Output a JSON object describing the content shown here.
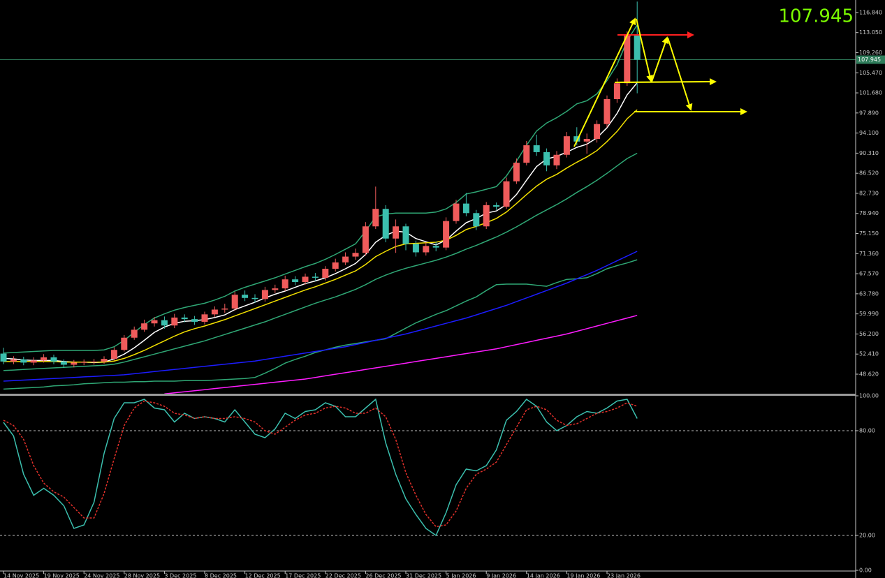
{
  "chart_data": [
    {
      "type": "candlestick",
      "current_price": 107.945,
      "up_color": "#ef5b5b",
      "down_color": "#3bbfae",
      "price_line_color": "#2f7d5b",
      "price_text_color": "#7cfc00",
      "categories": [
        "14 Nov 2025",
        null,
        null,
        null,
        "19 Nov 2025",
        null,
        null,
        null,
        "24 Nov 2025",
        null,
        null,
        null,
        "28 Nov 2025",
        null,
        null,
        null,
        "3 Dec 2025",
        null,
        null,
        null,
        "8 Dec 2025",
        null,
        null,
        null,
        "12 Dec 2025",
        null,
        null,
        null,
        "17 Dec 2025",
        null,
        null,
        null,
        "22 Dec 2025",
        null,
        null,
        null,
        "26 Dec 2025",
        null,
        null,
        null,
        "31 Dec 2025",
        null,
        null,
        null,
        "5 Jan 2026",
        null,
        null,
        null,
        "9 Jan 2026",
        null,
        null,
        null,
        "14 Jan 2026",
        null,
        null,
        null,
        "19 Jan 2026",
        null,
        null,
        null,
        "23 Jan 2026",
        null,
        null,
        null
      ],
      "open": [
        52.5,
        51.0,
        51.4,
        50.8,
        51.2,
        51.8,
        51.0,
        50.4,
        50.8,
        50.9,
        51.0,
        51.5,
        53.2,
        55.5,
        57.0,
        58.2,
        58.8,
        57.8,
        59.3,
        59.0,
        58.5,
        59.9,
        60.8,
        61.0,
        63.6,
        63.0,
        62.8,
        64.5,
        64.8,
        66.5,
        66.0,
        67.0,
        66.8,
        68.5,
        69.7,
        70.8,
        71.5,
        76.5,
        79.8,
        74.2,
        76.5,
        73.2,
        71.6,
        72.8,
        72.5,
        77.5,
        80.8,
        79.0,
        76.5,
        80.5,
        80.2,
        85.0,
        88.5,
        91.8,
        90.5,
        88.0,
        90.0,
        93.5,
        92.5,
        93.0,
        95.8,
        100.5,
        103.5,
        112.5
      ],
      "high": [
        53.6,
        52.0,
        51.9,
        51.8,
        52.4,
        52.3,
        51.4,
        51.3,
        51.4,
        51.5,
        52.0,
        53.7,
        56.0,
        57.6,
        58.9,
        59.4,
        59.5,
        60.0,
        59.9,
        59.6,
        60.4,
        61.4,
        61.9,
        64.2,
        64.4,
        63.7,
        65.1,
        65.5,
        67.2,
        67.1,
        67.6,
        67.7,
        69.0,
        70.4,
        71.6,
        72.3,
        77.3,
        84.0,
        80.5,
        77.8,
        77.0,
        73.8,
        73.5,
        73.6,
        78.2,
        81.5,
        82.8,
        79.6,
        81.1,
        81.0,
        85.7,
        89.3,
        92.6,
        93.8,
        91.2,
        90.7,
        94.3,
        95.2,
        94.0,
        96.5,
        101.2,
        104.4,
        113.3,
        118.9
      ],
      "low": [
        50.5,
        50.5,
        50.3,
        50.3,
        50.8,
        50.5,
        49.8,
        49.9,
        50.3,
        50.4,
        50.6,
        51.2,
        52.9,
        55.1,
        56.6,
        57.6,
        57.2,
        57.3,
        58.4,
        57.9,
        58.0,
        59.4,
        60.2,
        60.6,
        62.4,
        62.1,
        62.3,
        63.9,
        64.3,
        65.4,
        65.5,
        66.2,
        66.3,
        68.0,
        69.2,
        70.2,
        71.0,
        76.0,
        73.5,
        71.5,
        72.0,
        70.8,
        71.0,
        71.8,
        72.0,
        77.0,
        78.4,
        75.8,
        76.0,
        79.6,
        79.8,
        84.5,
        88.0,
        89.8,
        86.9,
        87.3,
        89.5,
        91.8,
        90.2,
        92.3,
        95.2,
        99.8,
        103.0,
        101.6
      ],
      "close": [
        51.0,
        51.4,
        50.8,
        51.2,
        51.8,
        51.0,
        50.4,
        50.8,
        50.9,
        51.0,
        51.5,
        53.2,
        55.5,
        57.0,
        58.2,
        58.8,
        57.8,
        59.3,
        59.0,
        58.5,
        59.9,
        60.8,
        61.0,
        63.6,
        63.0,
        62.8,
        64.5,
        64.8,
        66.5,
        66.0,
        67.0,
        66.8,
        68.5,
        69.7,
        70.8,
        71.5,
        76.5,
        79.8,
        74.2,
        76.5,
        73.2,
        71.6,
        72.8,
        72.5,
        77.5,
        80.8,
        79.0,
        76.5,
        80.5,
        80.2,
        85.0,
        88.5,
        91.8,
        90.5,
        88.0,
        90.0,
        93.5,
        92.5,
        93.0,
        95.8,
        100.5,
        103.5,
        112.5,
        107.945
      ],
      "series": [
        {
          "color": "#ffffff",
          "values": [
            51.6,
            51.5,
            51.3,
            51.2,
            51.2,
            51.2,
            51.0,
            50.9,
            50.9,
            50.8,
            50.9,
            51.5,
            52.4,
            53.6,
            55.0,
            56.5,
            57.5,
            58.2,
            58.6,
            58.7,
            58.9,
            59.3,
            59.8,
            60.8,
            61.5,
            62.2,
            63.0,
            63.7,
            64.3,
            65.0,
            65.7,
            66.2,
            66.8,
            67.6,
            68.5,
            69.5,
            71.2,
            73.5,
            74.8,
            75.6,
            75.4,
            74.2,
            73.6,
            73.0,
            73.9,
            75.6,
            77.2,
            78.0,
            79.0,
            79.4,
            80.6,
            82.5,
            85.2,
            87.8,
            89.2,
            89.7,
            90.5,
            91.4,
            92.0,
            93.2,
            95.1,
            97.8,
            101.3,
            103.6
          ]
        },
        {
          "color": "#f2e000",
          "values": [
            51.0,
            51.0,
            51.0,
            51.0,
            51.0,
            51.0,
            50.9,
            50.9,
            50.9,
            50.9,
            50.9,
            51.1,
            51.6,
            52.3,
            53.1,
            54.0,
            54.9,
            55.8,
            56.6,
            57.2,
            57.7,
            58.3,
            58.9,
            59.6,
            60.3,
            61.0,
            61.7,
            62.4,
            63.1,
            63.8,
            64.5,
            65.1,
            65.8,
            66.5,
            67.3,
            68.1,
            69.3,
            70.8,
            71.8,
            72.7,
            73.2,
            73.3,
            73.4,
            73.5,
            73.9,
            74.8,
            75.9,
            76.5,
            77.2,
            78.0,
            79.2,
            80.8,
            82.5,
            84.1,
            85.4,
            86.3,
            87.5,
            88.6,
            89.6,
            90.8,
            92.5,
            94.4,
            96.8,
            98.5
          ]
        },
        {
          "color": "#2fa775",
          "values": [
            52.6,
            52.7,
            52.8,
            52.9,
            53.0,
            53.1,
            53.1,
            53.1,
            53.1,
            53.1,
            53.2,
            53.8,
            55.0,
            56.5,
            58.0,
            59.2,
            60.0,
            60.7,
            61.2,
            61.6,
            62.0,
            62.6,
            63.3,
            64.3,
            65.0,
            65.6,
            66.2,
            66.8,
            67.5,
            68.2,
            68.9,
            69.5,
            70.3,
            71.2,
            72.2,
            73.2,
            75.6,
            78.3,
            78.8,
            79.0,
            79.0,
            79.0,
            79.0,
            79.2,
            79.8,
            81.0,
            82.6,
            83.0,
            83.5,
            84.0,
            86.0,
            88.8,
            91.8,
            94.5,
            96.0,
            97.0,
            98.2,
            99.6,
            100.2,
            101.5,
            104.0,
            107.0,
            111.5,
            114.5
          ]
        },
        {
          "color": "#2fa775",
          "values": [
            49.3,
            49.4,
            49.5,
            49.6,
            49.7,
            49.8,
            49.9,
            50.0,
            50.1,
            50.2,
            50.3,
            50.5,
            50.9,
            51.4,
            51.9,
            52.4,
            52.9,
            53.4,
            53.9,
            54.4,
            54.9,
            55.5,
            56.1,
            56.7,
            57.3,
            57.9,
            58.5,
            59.2,
            59.9,
            60.6,
            61.3,
            62.0,
            62.6,
            63.2,
            63.9,
            64.6,
            65.5,
            66.5,
            67.3,
            68.0,
            68.6,
            69.1,
            69.6,
            70.1,
            70.7,
            71.4,
            72.2,
            72.9,
            73.7,
            74.5,
            75.4,
            76.4,
            77.5,
            78.6,
            79.6,
            80.6,
            81.7,
            82.9,
            84.0,
            85.2,
            86.5,
            87.9,
            89.3,
            90.3
          ]
        },
        {
          "color": "#2fa775",
          "values": [
            45.8,
            45.9,
            46.0,
            46.1,
            46.2,
            46.4,
            46.5,
            46.6,
            46.8,
            46.9,
            47.0,
            47.1,
            47.1,
            47.2,
            47.2,
            47.3,
            47.3,
            47.3,
            47.4,
            47.4,
            47.4,
            47.5,
            47.6,
            47.7,
            47.8,
            48.0,
            48.8,
            49.7,
            50.7,
            51.4,
            52.0,
            52.7,
            53.2,
            53.7,
            54.1,
            54.4,
            54.7,
            55.0,
            55.3,
            56.3,
            57.3,
            58.3,
            59.1,
            59.9,
            60.6,
            61.5,
            62.4,
            63.2,
            64.4,
            65.5,
            65.6,
            65.6,
            65.6,
            65.4,
            65.2,
            65.9,
            66.5,
            66.6,
            66.8,
            67.6,
            68.5,
            69.1,
            69.6,
            70.2
          ]
        },
        {
          "color": "#1c1cff",
          "values": [
            47.3,
            47.4,
            47.5,
            47.6,
            47.7,
            47.8,
            47.9,
            48.0,
            48.1,
            48.2,
            48.3,
            48.4,
            48.5,
            48.7,
            48.9,
            49.1,
            49.3,
            49.5,
            49.7,
            49.9,
            50.1,
            50.3,
            50.5,
            50.7,
            50.9,
            51.1,
            51.4,
            51.7,
            52.0,
            52.3,
            52.6,
            52.9,
            53.2,
            53.5,
            53.8,
            54.2,
            54.6,
            55.0,
            55.4,
            55.8,
            56.2,
            56.7,
            57.2,
            57.7,
            58.2,
            58.7,
            59.2,
            59.8,
            60.4,
            61.0,
            61.6,
            62.3,
            63.0,
            63.7,
            64.4,
            65.1,
            65.8,
            66.6,
            67.4,
            68.2,
            69.1,
            70.0,
            70.9,
            71.8
          ]
        },
        {
          "color": "#ff1cff",
          "values": [
            null,
            null,
            null,
            null,
            null,
            null,
            null,
            null,
            null,
            null,
            null,
            null,
            null,
            null,
            null,
            null,
            44.9,
            45.1,
            45.3,
            45.5,
            45.7,
            45.9,
            46.1,
            46.3,
            46.5,
            46.7,
            46.9,
            47.1,
            47.3,
            47.5,
            47.7,
            48.0,
            48.3,
            48.6,
            48.9,
            49.2,
            49.5,
            49.8,
            50.1,
            50.4,
            50.7,
            51.0,
            51.3,
            51.6,
            51.9,
            52.2,
            52.5,
            52.8,
            53.1,
            53.4,
            53.8,
            54.2,
            54.6,
            55.0,
            55.4,
            55.8,
            56.2,
            56.7,
            57.2,
            57.7,
            58.2,
            58.7,
            59.2,
            59.7
          ]
        }
      ],
      "ylim": [
        44.8,
        119.2
      ],
      "yticks": [
        {
          "value": 116.84,
          "label": "116.840"
        },
        {
          "value": 113.05,
          "label": "113.050"
        },
        {
          "value": 109.26,
          "label": "109.260"
        },
        {
          "value": 105.47,
          "label": "105.470"
        },
        {
          "value": 101.68,
          "label": "101.680"
        },
        {
          "value": 97.89,
          "label": "97.890"
        },
        {
          "value": 94.1,
          "label": "94.100"
        },
        {
          "value": 90.31,
          "label": "90.310"
        },
        {
          "value": 86.52,
          "label": "86.520"
        },
        {
          "value": 82.73,
          "label": "82.730"
        },
        {
          "value": 78.94,
          "label": "78.940"
        },
        {
          "value": 75.15,
          "label": "75.150"
        },
        {
          "value": 71.36,
          "label": "71.360"
        },
        {
          "value": 67.57,
          "label": "67.570"
        },
        {
          "value": 63.78,
          "label": "63.780"
        },
        {
          "value": 59.99,
          "label": "59.990"
        },
        {
          "value": 56.2,
          "label": "56.200"
        },
        {
          "value": 52.41,
          "label": "52.410"
        },
        {
          "value": 48.62,
          "label": "48.620"
        }
      ]
    },
    {
      "type": "line",
      "series": [
        {
          "color": "#3bbfae",
          "dashed": false,
          "values": [
            84.8,
            77,
            55,
            43,
            47,
            43,
            37,
            24,
            26,
            39,
            67,
            87,
            96,
            96,
            98,
            93,
            92,
            85,
            90,
            87,
            88,
            87,
            85,
            92,
            85,
            78,
            76,
            81,
            90,
            87,
            91,
            92,
            96,
            94,
            88,
            88,
            93,
            98,
            73,
            55,
            41,
            32,
            24,
            20,
            33,
            49,
            58,
            57,
            60,
            69,
            86,
            91,
            98,
            94,
            85,
            80,
            83,
            88,
            91,
            90,
            93,
            97,
            98,
            87
          ]
        },
        {
          "color": "#e0302a",
          "dashed": true,
          "values": [
            86,
            83,
            75,
            60,
            50,
            45,
            42,
            36,
            30,
            30,
            44,
            64,
            83,
            93,
            97,
            96,
            94,
            90,
            89,
            87,
            88,
            87,
            87,
            88,
            87,
            85,
            80,
            78,
            82,
            86,
            89,
            90,
            93,
            94,
            93,
            90,
            90,
            93,
            88,
            75,
            56,
            43,
            32,
            25,
            26,
            34,
            47,
            55,
            58,
            62,
            72,
            82,
            92,
            94,
            92,
            86,
            83,
            84,
            87,
            90,
            91,
            93,
            96,
            94
          ]
        }
      ],
      "levels": [
        80,
        20
      ],
      "ylim": [
        0,
        100
      ],
      "yticks": [
        {
          "value": 100,
          "label": "100.00"
        },
        {
          "value": 80,
          "label": "80.00"
        },
        {
          "value": 20,
          "label": "20.00"
        },
        {
          "value": 0,
          "label": "0.00"
        }
      ]
    }
  ]
}
